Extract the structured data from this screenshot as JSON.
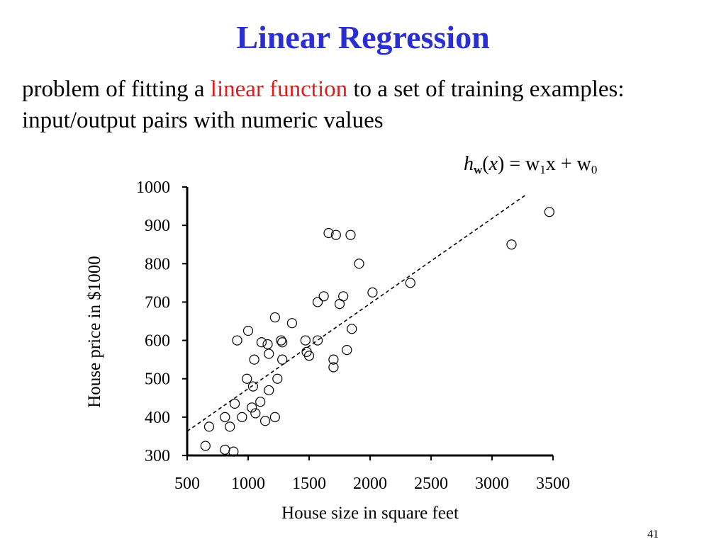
{
  "slide": {
    "title": "Linear Regression",
    "intro_before": "problem of fitting a ",
    "intro_highlight": "linear function",
    "intro_after": " to a set of training examples: input/output pairs with numeric values",
    "page_number": "41",
    "highlight_color": "#e31a1c",
    "title_color": "#2b2fd1"
  },
  "formula": {
    "h": "h",
    "w": "w",
    "x": "x",
    "eq": " = w",
    "sub1": "1",
    "mid": "x + w",
    "sub0": "0"
  },
  "chart_data": {
    "type": "scatter",
    "xlabel": "House size in square feet",
    "ylabel": "House price in $1000",
    "xlim": [
      500,
      3500
    ],
    "ylim": [
      300,
      1000
    ],
    "x_ticks": [
      500,
      1000,
      1500,
      2000,
      2500,
      3000,
      3500
    ],
    "y_ticks": [
      300,
      400,
      500,
      600,
      700,
      800,
      900,
      1000
    ],
    "grid": false,
    "legend": "none",
    "points": [
      [
        1660,
        880
      ],
      [
        1720,
        875
      ],
      [
        1840,
        875
      ],
      [
        3470,
        935
      ],
      [
        3160,
        850
      ],
      [
        1910,
        800
      ],
      [
        2020,
        725
      ],
      [
        2330,
        750
      ],
      [
        1620,
        715
      ],
      [
        1780,
        715
      ],
      [
        1570,
        700
      ],
      [
        1750,
        695
      ],
      [
        1220,
        660
      ],
      [
        1360,
        645
      ],
      [
        1000,
        625
      ],
      [
        1850,
        630
      ],
      [
        910,
        600
      ],
      [
        1110,
        595
      ],
      [
        1160,
        590
      ],
      [
        1270,
        600
      ],
      [
        1280,
        595
      ],
      [
        1470,
        600
      ],
      [
        1570,
        600
      ],
      [
        1170,
        565
      ],
      [
        1480,
        570
      ],
      [
        1500,
        560
      ],
      [
        1810,
        575
      ],
      [
        1050,
        550
      ],
      [
        1280,
        550
      ],
      [
        1700,
        550
      ],
      [
        1700,
        530
      ],
      [
        990,
        500
      ],
      [
        1240,
        500
      ],
      [
        1040,
        480
      ],
      [
        1170,
        470
      ],
      [
        890,
        435
      ],
      [
        1100,
        440
      ],
      [
        1030,
        425
      ],
      [
        1060,
        410
      ],
      [
        810,
        400
      ],
      [
        950,
        400
      ],
      [
        1140,
        390
      ],
      [
        1220,
        400
      ],
      [
        680,
        375
      ],
      [
        850,
        375
      ],
      [
        650,
        325
      ],
      [
        810,
        315
      ],
      [
        880,
        310
      ]
    ],
    "fit_line": {
      "style": "dashed",
      "x": [
        500,
        3270
      ],
      "y": [
        363,
        978
      ]
    }
  }
}
